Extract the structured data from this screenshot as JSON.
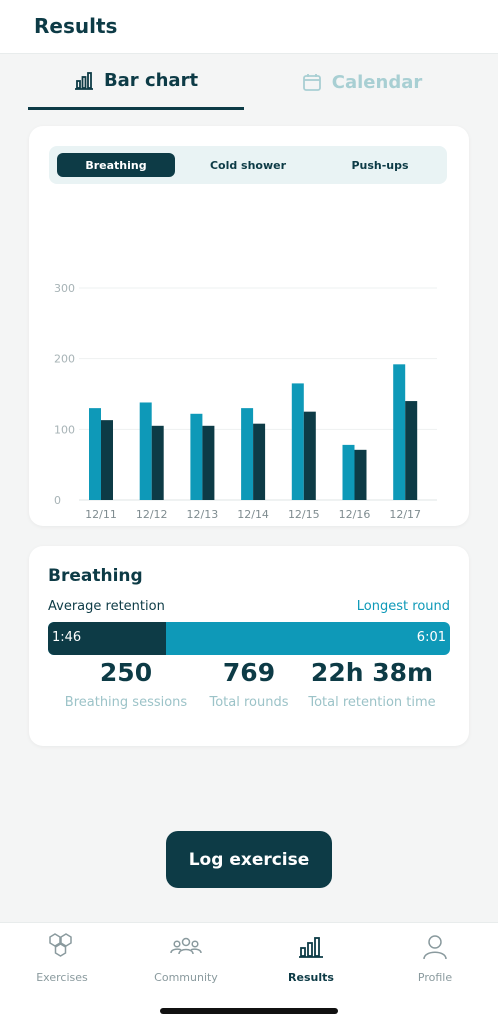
{
  "header": {
    "title": "Results"
  },
  "tabs": [
    {
      "label": "Bar chart",
      "icon": "bar-chart-icon",
      "active": true
    },
    {
      "label": "Calendar",
      "icon": "calendar-icon",
      "active": false
    }
  ],
  "segments": [
    {
      "label": "Breathing",
      "active": true
    },
    {
      "label": "Cold shower",
      "active": false
    },
    {
      "label": "Push-ups",
      "active": false
    }
  ],
  "chart_data": {
    "type": "bar",
    "categories": [
      "12/11",
      "12/12",
      "12/13",
      "12/14",
      "12/15",
      "12/16",
      "12/17"
    ],
    "series": [
      {
        "values": [
          130,
          138,
          122,
          130,
          165,
          78,
          192
        ],
        "color": "#0e99b8"
      },
      {
        "values": [
          113,
          105,
          105,
          108,
          125,
          71,
          140
        ],
        "color": "#0d3b46"
      }
    ],
    "yticks": [
      0,
      100,
      200,
      300
    ],
    "ylim": [
      0,
      300
    ],
    "grid": true
  },
  "stats": {
    "title": "Breathing",
    "avg_label": "Average retention",
    "longest_label": "Longest round",
    "avg_value": "1:46",
    "longest_value": "6:01",
    "avg_fraction": 0.293,
    "items": [
      {
        "value": "250",
        "label": "Breathing sessions"
      },
      {
        "value": "769",
        "label": "Total rounds"
      },
      {
        "value": "22h 38m",
        "label": "Total retention time"
      }
    ]
  },
  "log_button": "Log exercise",
  "nav": [
    {
      "label": "Exercises",
      "icon": "hexagons-icon",
      "active": false
    },
    {
      "label": "Community",
      "icon": "community-icon",
      "active": false
    },
    {
      "label": "Results",
      "icon": "bar-chart-icon",
      "active": true
    },
    {
      "label": "Profile",
      "icon": "profile-icon",
      "active": false
    }
  ],
  "colors": {
    "primary": "#0d3b46",
    "accent": "#0e99b8",
    "muted": "#9cc3c8"
  }
}
